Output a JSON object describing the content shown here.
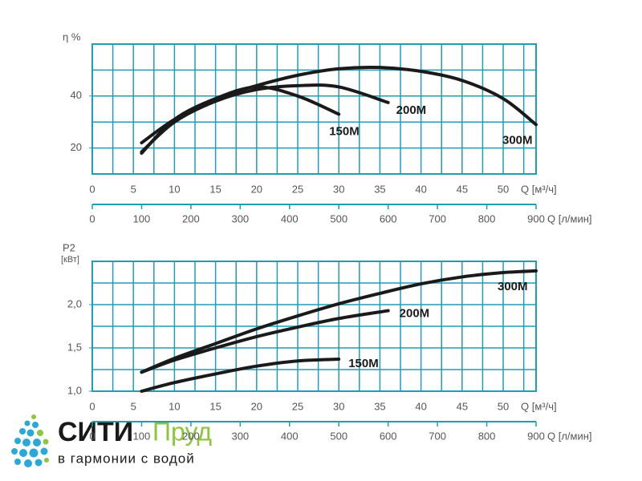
{
  "chart_data": [
    {
      "type": "line",
      "ylabel": "η %",
      "xlabel": "Q [м³/ч]",
      "x2label": "Q [л/мин]",
      "xlim": [
        0,
        54
      ],
      "xticks": [
        0,
        5,
        10,
        15,
        20,
        25,
        30,
        35,
        40,
        45,
        50
      ],
      "x2lim": [
        0,
        900
      ],
      "x2ticks": [
        0,
        100,
        200,
        300,
        400,
        500,
        600,
        700,
        800,
        900
      ],
      "ylim": [
        10,
        60
      ],
      "yticks": [
        20,
        40
      ],
      "xgrid": [
        2.5,
        5,
        7.5,
        10,
        12.5,
        15,
        17.5,
        20,
        22.5,
        25,
        27.5,
        30,
        32.5,
        35,
        37.5,
        40,
        42.5,
        45,
        47.5,
        50,
        52.5
      ],
      "ygrid": [
        20,
        30,
        40,
        50
      ],
      "grid_color": "#1f9db3",
      "series": [
        {
          "name": "150M",
          "color": "#1a1a1a",
          "x": [
            6,
            10,
            15,
            20,
            25,
            30
          ],
          "values": [
            18,
            31,
            39,
            43.5,
            40,
            33
          ]
        },
        {
          "name": "200M",
          "color": "#1a1a1a",
          "x": [
            6,
            10,
            15,
            20,
            25,
            30,
            36
          ],
          "values": [
            18.5,
            30,
            38,
            42.5,
            44,
            43.5,
            37.5
          ]
        },
        {
          "name": "300M",
          "color": "#1a1a1a",
          "x": [
            6,
            10,
            15,
            20,
            25,
            30,
            35,
            40,
            45,
            50,
            54
          ],
          "values": [
            22,
            31,
            39,
            44,
            48,
            50.5,
            51,
            49.5,
            46,
            39,
            29
          ]
        }
      ]
    },
    {
      "type": "line",
      "ylabel": "P2",
      "yunit": "[кВт]",
      "xlabel": "Q [м³/ч]",
      "x2label": "Q [л/мин]",
      "xlim": [
        0,
        54
      ],
      "xticks": [
        0,
        5,
        10,
        15,
        20,
        25,
        30,
        35,
        40,
        45,
        50
      ],
      "x2lim": [
        0,
        900
      ],
      "x2ticks": [
        0,
        100,
        200,
        300,
        400,
        500,
        600,
        700,
        800,
        900
      ],
      "ylim": [
        1.0,
        2.5
      ],
      "yticks": [
        {
          "value": 1.0,
          "label": "1,0"
        },
        {
          "value": 1.5,
          "label": "1,5"
        },
        {
          "value": 2.0,
          "label": "2,0"
        }
      ],
      "xgrid": [
        2.5,
        5,
        7.5,
        10,
        12.5,
        15,
        17.5,
        20,
        22.5,
        25,
        27.5,
        30,
        32.5,
        35,
        37.5,
        40,
        42.5,
        45,
        47.5,
        50,
        52.5
      ],
      "ygrid": [
        1.25,
        1.5,
        1.75,
        2.0,
        2.25
      ],
      "grid_color": "#1f9db3",
      "series": [
        {
          "name": "150M",
          "color": "#1a1a1a",
          "x": [
            6,
            10,
            15,
            20,
            25,
            30
          ],
          "values": [
            1.0,
            1.1,
            1.2,
            1.29,
            1.35,
            1.37
          ]
        },
        {
          "name": "200M",
          "color": "#1a1a1a",
          "x": [
            6,
            10,
            15,
            20,
            25,
            30,
            36
          ],
          "values": [
            1.22,
            1.36,
            1.5,
            1.63,
            1.74,
            1.84,
            1.93
          ]
        },
        {
          "name": "300M",
          "color": "#1a1a1a",
          "x": [
            6,
            10,
            15,
            20,
            25,
            30,
            35,
            40,
            45,
            50,
            54
          ],
          "values": [
            1.22,
            1.38,
            1.55,
            1.72,
            1.87,
            2.01,
            2.13,
            2.24,
            2.32,
            2.37,
            2.39
          ]
        }
      ]
    }
  ],
  "logo": {
    "name1": "СИТИ",
    "name2": "Пруд",
    "tagline": "в гармонии с водой"
  }
}
